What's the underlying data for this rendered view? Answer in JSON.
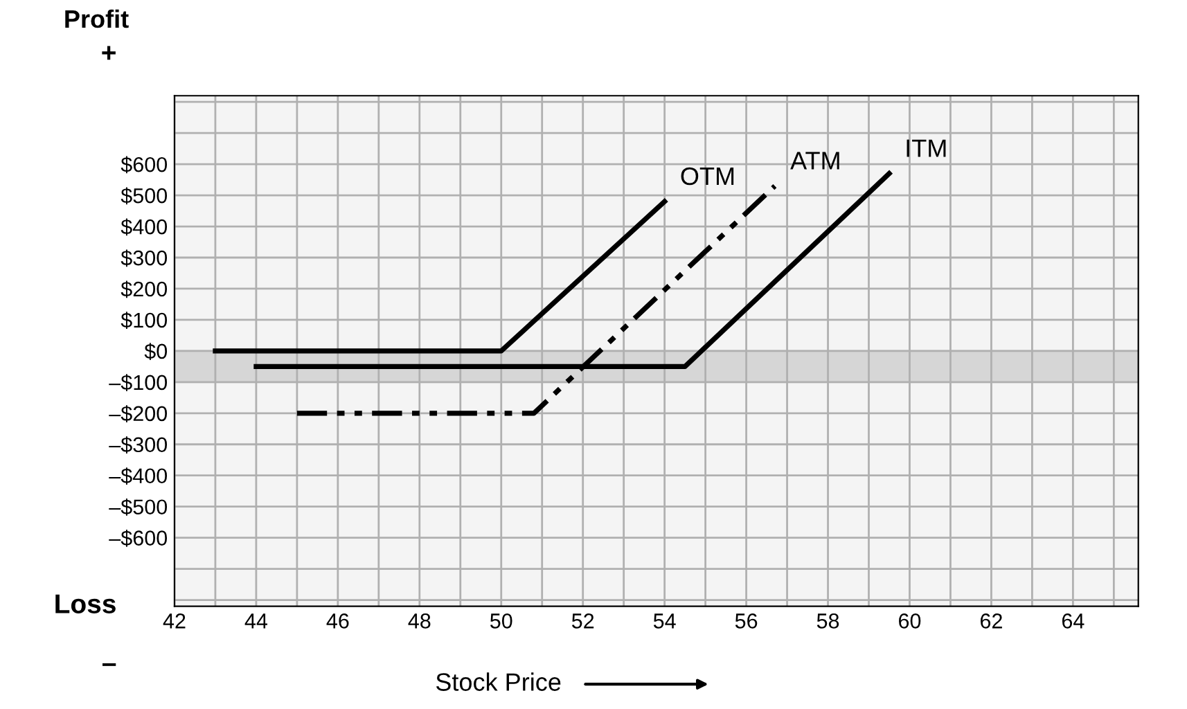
{
  "chart_data": {
    "type": "line",
    "xlabel": "Stock Price",
    "ylabel": "Profit",
    "annotations": [
      "+",
      "Loss",
      "–"
    ],
    "xlim": [
      42,
      65.6
    ],
    "ylim": [
      -820,
      820
    ],
    "xticks": [
      42,
      44,
      46,
      48,
      50,
      52,
      54,
      56,
      58,
      60,
      62,
      64
    ],
    "yticks": [
      {
        "value": 600,
        "label": "$600"
      },
      {
        "value": 500,
        "label": "$500"
      },
      {
        "value": 400,
        "label": "$400"
      },
      {
        "value": 300,
        "label": "$300"
      },
      {
        "value": 200,
        "label": "$200"
      },
      {
        "value": 100,
        "label": "$100"
      },
      {
        "value": 0,
        "label": "$0"
      },
      {
        "value": -100,
        "label": "–$100"
      },
      {
        "value": -200,
        "label": "–$200"
      },
      {
        "value": -300,
        "label": "–$300"
      },
      {
        "value": -400,
        "label": "–$400"
      },
      {
        "value": -500,
        "label": "–$500"
      },
      {
        "value": -600,
        "label": "–$600"
      }
    ],
    "grid": true,
    "legend": false,
    "marker": "none",
    "bands": [
      {
        "axis": "y",
        "from": -100,
        "to": 0,
        "color": "#d6d6d6"
      }
    ],
    "series": [
      {
        "name": "OTM",
        "color": "#000000",
        "line_style": "solid",
        "x": [
          43,
          50,
          54
        ],
        "values": [
          0,
          0,
          480
        ]
      },
      {
        "name": "ATM",
        "color": "#000000",
        "line_style": "dashed",
        "x": [
          45,
          50.8,
          56.7
        ],
        "values": [
          -200,
          -200,
          530
        ]
      },
      {
        "name": "ITM",
        "color": "#000000",
        "line_style": "solid",
        "x": [
          44,
          54.5,
          59.5
        ],
        "values": [
          -50,
          -50,
          570
        ]
      }
    ]
  }
}
